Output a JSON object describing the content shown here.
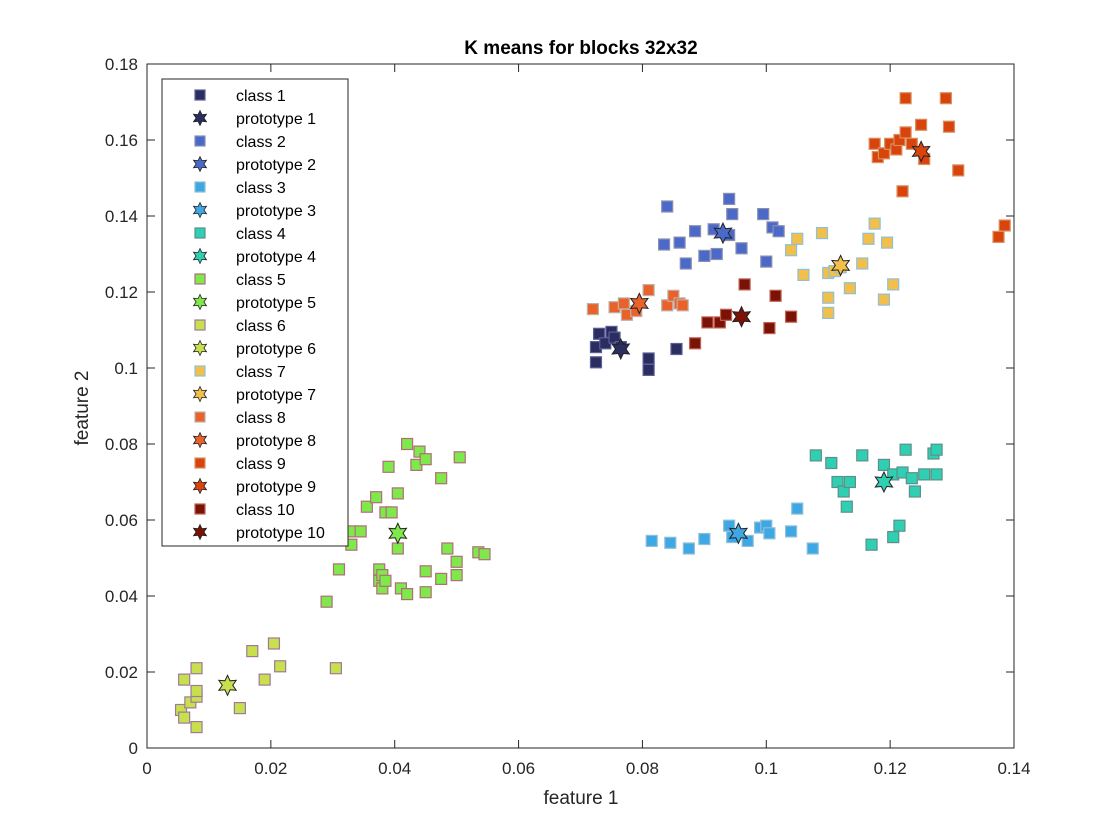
{
  "chart_data": {
    "type": "scatter",
    "title": "K means for blocks 32x32",
    "xlabel": "feature 1",
    "ylabel": "feature 2",
    "xlim": [
      0,
      0.14
    ],
    "ylim": [
      0,
      0.18
    ],
    "xticks": [
      "0",
      "0.02",
      "0.04",
      "0.06",
      "0.08",
      "0.1",
      "0.12",
      "0.14"
    ],
    "yticks": [
      "0",
      "0.02",
      "0.04",
      "0.06",
      "0.08",
      "0.1",
      "0.12",
      "0.14",
      "0.16",
      "0.18"
    ],
    "grid": false,
    "legend_position": "top-left",
    "series": [
      {
        "name": "class 1",
        "color": "#2b2d5e",
        "edge": "#5a5f9a",
        "points": [
          [
            0.0725,
            0.1015
          ],
          [
            0.0725,
            0.1055
          ],
          [
            0.073,
            0.109
          ],
          [
            0.074,
            0.1065
          ],
          [
            0.075,
            0.1095
          ],
          [
            0.0755,
            0.108
          ],
          [
            0.0765,
            0.1055
          ],
          [
            0.081,
            0.1025
          ],
          [
            0.081,
            0.0995
          ],
          [
            0.0855,
            0.105
          ]
        ],
        "prototype": {
          "name": "prototype 1",
          "point": [
            0.0765,
            0.105
          ]
        }
      },
      {
        "name": "class 2",
        "color": "#4a69c9",
        "edge": "#8a8fb0",
        "points": [
          [
            0.084,
            0.1425
          ],
          [
            0.0835,
            0.1325
          ],
          [
            0.086,
            0.133
          ],
          [
            0.087,
            0.1275
          ],
          [
            0.0885,
            0.136
          ],
          [
            0.09,
            0.1295
          ],
          [
            0.092,
            0.13
          ],
          [
            0.0915,
            0.1365
          ],
          [
            0.094,
            0.1445
          ],
          [
            0.0945,
            0.1405
          ],
          [
            0.094,
            0.135
          ],
          [
            0.096,
            0.1315
          ],
          [
            0.0995,
            0.1405
          ],
          [
            0.1,
            0.128
          ],
          [
            0.101,
            0.137
          ],
          [
            0.102,
            0.136
          ]
        ],
        "prototype": {
          "name": "prototype 2",
          "point": [
            0.093,
            0.1355
          ]
        }
      },
      {
        "name": "class 3",
        "color": "#3ea8e4",
        "edge": "#8fbfd8",
        "points": [
          [
            0.0815,
            0.0545
          ],
          [
            0.0845,
            0.054
          ],
          [
            0.0875,
            0.0525
          ],
          [
            0.09,
            0.055
          ],
          [
            0.094,
            0.0585
          ],
          [
            0.0945,
            0.0555
          ],
          [
            0.097,
            0.0545
          ],
          [
            0.099,
            0.058
          ],
          [
            0.1,
            0.0585
          ],
          [
            0.1005,
            0.0565
          ],
          [
            0.104,
            0.057
          ],
          [
            0.105,
            0.063
          ],
          [
            0.1075,
            0.0525
          ]
        ],
        "prototype": {
          "name": "prototype 3",
          "point": [
            0.0955,
            0.0565
          ]
        }
      },
      {
        "name": "class 4",
        "color": "#2ecfb2",
        "edge": "#5f8f88",
        "points": [
          [
            0.108,
            0.077
          ],
          [
            0.1105,
            0.075
          ],
          [
            0.1115,
            0.07
          ],
          [
            0.1125,
            0.0675
          ],
          [
            0.113,
            0.0635
          ],
          [
            0.1135,
            0.07
          ],
          [
            0.1155,
            0.077
          ],
          [
            0.117,
            0.0535
          ],
          [
            0.119,
            0.0745
          ],
          [
            0.1205,
            0.0555
          ],
          [
            0.1205,
            0.072
          ],
          [
            0.1215,
            0.0585
          ],
          [
            0.122,
            0.0725
          ],
          [
            0.1225,
            0.0785
          ],
          [
            0.1235,
            0.071
          ],
          [
            0.124,
            0.0675
          ],
          [
            0.1255,
            0.072
          ],
          [
            0.127,
            0.0775
          ],
          [
            0.1275,
            0.0785
          ],
          [
            0.1275,
            0.072
          ]
        ],
        "prototype": {
          "name": "prototype 4",
          "point": [
            0.119,
            0.07
          ]
        }
      },
      {
        "name": "class 5",
        "color": "#7fe84a",
        "edge": "#b06e7a",
        "points": [
          [
            0.029,
            0.0385
          ],
          [
            0.031,
            0.047
          ],
          [
            0.0315,
            0.058
          ],
          [
            0.033,
            0.057
          ],
          [
            0.033,
            0.0535
          ],
          [
            0.0345,
            0.057
          ],
          [
            0.0355,
            0.0635
          ],
          [
            0.037,
            0.066
          ],
          [
            0.0375,
            0.044
          ],
          [
            0.0375,
            0.047
          ],
          [
            0.038,
            0.0455
          ],
          [
            0.038,
            0.042
          ],
          [
            0.0385,
            0.062
          ],
          [
            0.0385,
            0.044
          ],
          [
            0.039,
            0.074
          ],
          [
            0.0395,
            0.062
          ],
          [
            0.0405,
            0.067
          ],
          [
            0.0405,
            0.0525
          ],
          [
            0.041,
            0.042
          ],
          [
            0.042,
            0.0405
          ],
          [
            0.042,
            0.08
          ],
          [
            0.0435,
            0.0745
          ],
          [
            0.044,
            0.078
          ],
          [
            0.045,
            0.076
          ],
          [
            0.045,
            0.0465
          ],
          [
            0.045,
            0.041
          ],
          [
            0.0475,
            0.0445
          ],
          [
            0.0475,
            0.071
          ],
          [
            0.0485,
            0.0525
          ],
          [
            0.05,
            0.0455
          ],
          [
            0.05,
            0.049
          ],
          [
            0.0505,
            0.0765
          ],
          [
            0.0535,
            0.0515
          ],
          [
            0.0545,
            0.051
          ]
        ],
        "prototype": {
          "name": "prototype 5",
          "point": [
            0.0405,
            0.0565
          ]
        }
      },
      {
        "name": "class 6",
        "color": "#c9e04e",
        "edge": "#9e7a9a",
        "points": [
          [
            0.0055,
            0.01
          ],
          [
            0.006,
            0.008
          ],
          [
            0.006,
            0.018
          ],
          [
            0.007,
            0.012
          ],
          [
            0.008,
            0.0135
          ],
          [
            0.008,
            0.015
          ],
          [
            0.008,
            0.021
          ],
          [
            0.008,
            0.0055
          ],
          [
            0.015,
            0.0105
          ],
          [
            0.017,
            0.0255
          ],
          [
            0.019,
            0.018
          ],
          [
            0.0205,
            0.0275
          ],
          [
            0.0215,
            0.0215
          ],
          [
            0.0305,
            0.021
          ]
        ],
        "prototype": {
          "name": "prototype 6",
          "point": [
            0.013,
            0.0165
          ]
        }
      },
      {
        "name": "class 7",
        "color": "#f2bf4a",
        "edge": "#8fc0d8",
        "points": [
          [
            0.104,
            0.131
          ],
          [
            0.105,
            0.134
          ],
          [
            0.106,
            0.1245
          ],
          [
            0.109,
            0.1355
          ],
          [
            0.11,
            0.125
          ],
          [
            0.11,
            0.1185
          ],
          [
            0.11,
            0.1145
          ],
          [
            0.111,
            0.1255
          ],
          [
            0.112,
            0.1265
          ],
          [
            0.1135,
            0.121
          ],
          [
            0.1155,
            0.1275
          ],
          [
            0.1165,
            0.134
          ],
          [
            0.1175,
            0.138
          ],
          [
            0.119,
            0.118
          ],
          [
            0.1195,
            0.133
          ],
          [
            0.1205,
            0.122
          ]
        ],
        "prototype": {
          "name": "prototype 7",
          "point": [
            0.112,
            0.127
          ]
        }
      },
      {
        "name": "class 8",
        "color": "#e8622a",
        "edge": "#c0b0a8",
        "points": [
          [
            0.072,
            0.1155
          ],
          [
            0.0755,
            0.116
          ],
          [
            0.077,
            0.117
          ],
          [
            0.0775,
            0.114
          ],
          [
            0.079,
            0.115
          ],
          [
            0.081,
            0.1205
          ],
          [
            0.084,
            0.1165
          ],
          [
            0.085,
            0.119
          ],
          [
            0.086,
            0.117
          ],
          [
            0.0865,
            0.1165
          ]
        ],
        "prototype": {
          "name": "prototype 8",
          "point": [
            0.0795,
            0.117
          ]
        }
      },
      {
        "name": "class 9",
        "color": "#d8440c",
        "edge": "#d89060",
        "points": [
          [
            0.1175,
            0.159
          ],
          [
            0.118,
            0.1555
          ],
          [
            0.119,
            0.1565
          ],
          [
            0.12,
            0.159
          ],
          [
            0.121,
            0.1575
          ],
          [
            0.1215,
            0.16
          ],
          [
            0.122,
            0.1465
          ],
          [
            0.1225,
            0.162
          ],
          [
            0.1225,
            0.171
          ],
          [
            0.1235,
            0.159
          ],
          [
            0.125,
            0.164
          ],
          [
            0.1255,
            0.155
          ],
          [
            0.129,
            0.171
          ],
          [
            0.1295,
            0.1635
          ],
          [
            0.131,
            0.152
          ],
          [
            0.1375,
            0.1345
          ],
          [
            0.1385,
            0.1375
          ]
        ],
        "prototype": {
          "name": "prototype 9",
          "point": [
            0.125,
            0.157
          ]
        }
      },
      {
        "name": "class 10",
        "color": "#7a1208",
        "edge": "#c06050",
        "points": [
          [
            0.0885,
            0.1065
          ],
          [
            0.0905,
            0.112
          ],
          [
            0.0925,
            0.112
          ],
          [
            0.0935,
            0.114
          ],
          [
            0.0965,
            0.122
          ],
          [
            0.1005,
            0.1105
          ],
          [
            0.1015,
            0.119
          ],
          [
            0.104,
            0.1135
          ]
        ],
        "prototype": {
          "name": "prototype 10",
          "point": [
            0.096,
            0.1135
          ]
        }
      }
    ]
  }
}
